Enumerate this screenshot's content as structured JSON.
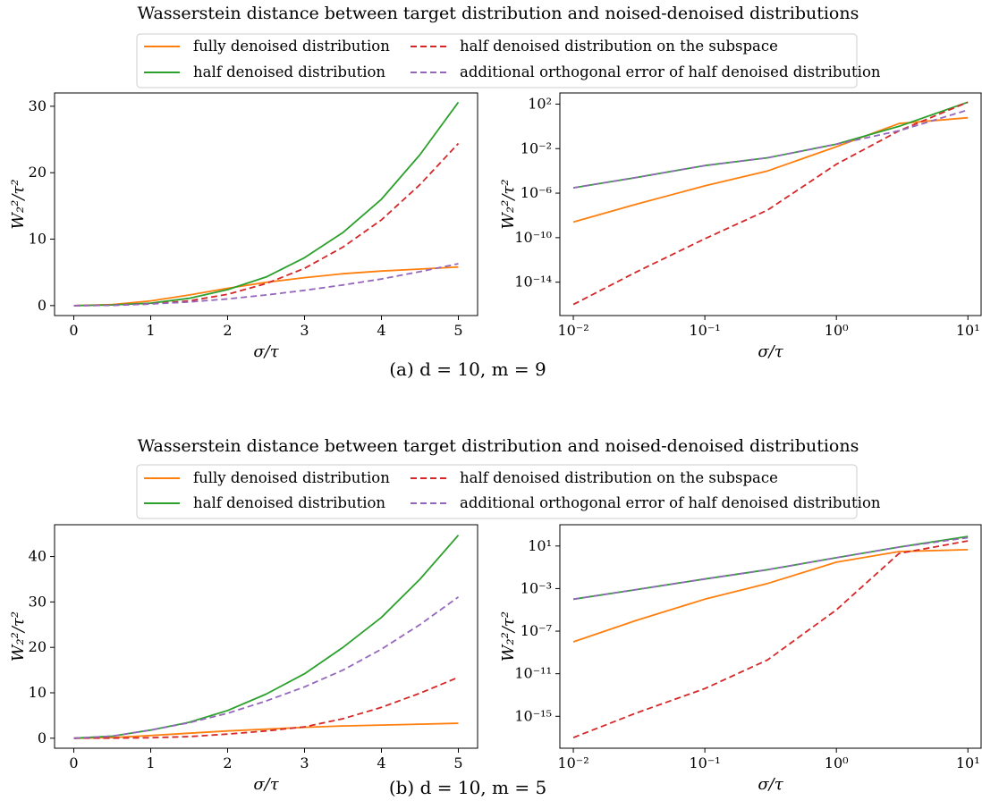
{
  "figures": [
    {
      "title": "Wasserstein distance between target distribution and noised-denoised distributions",
      "caption": "(a) d = 10, m = 9",
      "legend": [
        {
          "label": "fully denoised distribution",
          "color": "#ff7f0e",
          "dash": "solid"
        },
        {
          "label": "half denoised distribution on the subspace",
          "color": "#d62728",
          "dash": "dashed"
        },
        {
          "label": "half denoised distribution",
          "color": "#2ca02c",
          "dash": "solid"
        },
        {
          "label": "additional orthogonal error of half denoised distribution",
          "color": "#9467bd",
          "dash": "dashed"
        }
      ]
    },
    {
      "title": "Wasserstein distance between target distribution and noised-denoised distributions",
      "caption": "(b) d = 10, m = 5",
      "legend": [
        {
          "label": "fully denoised distribution",
          "color": "#ff7f0e",
          "dash": "solid"
        },
        {
          "label": "half denoised distribution on the subspace",
          "color": "#d62728",
          "dash": "dashed"
        },
        {
          "label": "half denoised distribution",
          "color": "#2ca02c",
          "dash": "solid"
        },
        {
          "label": "additional orthogonal error of half denoised distribution",
          "color": "#9467bd",
          "dash": "dashed"
        }
      ]
    }
  ],
  "chart_data": [
    {
      "type": "line",
      "figure": "a",
      "scale": "linear",
      "xlabel": "σ/τ",
      "ylabel": "W₂²/τ²",
      "xlim": [
        -0.25,
        5.25
      ],
      "ylim": [
        -1.5,
        32
      ],
      "xticks": [
        0,
        1,
        2,
        3,
        4,
        5
      ],
      "yticks": [
        0,
        10,
        20,
        30
      ],
      "x": [
        0,
        0.5,
        1,
        1.5,
        2,
        2.5,
        3,
        3.5,
        4,
        4.5,
        5
      ],
      "series": [
        {
          "name": "fully denoised distribution",
          "color": "#ff7f0e",
          "dash": "solid",
          "y": [
            0,
            0.15,
            0.7,
            1.6,
            2.6,
            3.5,
            4.2,
            4.8,
            5.2,
            5.5,
            5.8
          ]
        },
        {
          "name": "half denoised distribution",
          "color": "#2ca02c",
          "dash": "solid",
          "y": [
            0,
            0.1,
            0.35,
            1.1,
            2.4,
            4.3,
            7.2,
            11.0,
            16.0,
            22.7,
            30.6
          ]
        },
        {
          "name": "half denoised distribution on the subspace",
          "color": "#d62728",
          "dash": "dashed",
          "y": [
            0,
            0.05,
            0.25,
            0.7,
            1.7,
            3.3,
            5.6,
            8.8,
            12.9,
            18.2,
            24.4
          ]
        },
        {
          "name": "additional orthogonal error of half denoised distribution",
          "color": "#9467bd",
          "dash": "dashed",
          "y": [
            0,
            0.05,
            0.25,
            0.55,
            1.0,
            1.6,
            2.3,
            3.1,
            4.0,
            5.1,
            6.3
          ]
        }
      ]
    },
    {
      "type": "line",
      "figure": "a",
      "scale": "log",
      "xlabel": "σ/τ",
      "ylabel": "W₂²/τ²",
      "xlim": [
        0.0079,
        12.6
      ],
      "ylim": [
        1e-17,
        1000.0
      ],
      "xticks": [
        0.01,
        0.1,
        1,
        10
      ],
      "yticks": [
        1e-14,
        1e-10,
        1e-06,
        0.01,
        100.0
      ],
      "x": [
        0.01,
        0.03,
        0.1,
        0.3,
        1,
        3,
        10
      ],
      "series": [
        {
          "name": "fully denoised distribution",
          "color": "#ff7f0e",
          "dash": "solid",
          "y": [
            2.5e-09,
            1e-07,
            4.5e-06,
            0.0001,
            0.015,
            1.8,
            6
          ]
        },
        {
          "name": "half denoised distribution",
          "color": "#2ca02c",
          "dash": "solid",
          "y": [
            3e-06,
            2.5e-05,
            0.0003,
            0.0015,
            0.025,
            1.0,
            150.0
          ]
        },
        {
          "name": "half denoised distribution on the subspace",
          "color": "#d62728",
          "dash": "dashed",
          "y": [
            1e-16,
            8e-14,
            8e-11,
            3e-08,
            0.0004,
            0.4,
            150.0
          ]
        },
        {
          "name": "additional orthogonal error of half denoised distribution",
          "color": "#9467bd",
          "dash": "dashed",
          "y": [
            3e-06,
            2.5e-05,
            0.0003,
            0.0015,
            0.025,
            0.4,
            30.0
          ]
        }
      ]
    },
    {
      "type": "line",
      "figure": "b",
      "scale": "linear",
      "xlabel": "σ/τ",
      "ylabel": "W₂²/τ²",
      "xlim": [
        -0.25,
        5.25
      ],
      "ylim": [
        -2.2,
        47
      ],
      "xticks": [
        0,
        1,
        2,
        3,
        4,
        5
      ],
      "yticks": [
        0,
        10,
        20,
        30,
        40
      ],
      "x": [
        0,
        0.5,
        1,
        1.5,
        2,
        2.5,
        3,
        3.5,
        4,
        4.5,
        5
      ],
      "series": [
        {
          "name": "fully denoised distribution",
          "color": "#ff7f0e",
          "dash": "solid",
          "y": [
            0,
            0.15,
            0.6,
            1.1,
            1.6,
            2.0,
            2.4,
            2.7,
            2.9,
            3.1,
            3.3
          ]
        },
        {
          "name": "half denoised distribution",
          "color": "#2ca02c",
          "dash": "solid",
          "y": [
            0,
            0.45,
            1.8,
            3.5,
            6.1,
            9.7,
            14.2,
            20.0,
            26.6,
            35.0,
            44.7
          ]
        },
        {
          "name": "half denoised distribution on the subspace",
          "color": "#d62728",
          "dash": "dashed",
          "y": [
            0,
            0.02,
            0.1,
            0.35,
            0.9,
            1.6,
            2.5,
            4.3,
            6.8,
            9.9,
            13.4
          ]
        },
        {
          "name": "additional orthogonal error of half denoised distribution",
          "color": "#9467bd",
          "dash": "dashed",
          "y": [
            0,
            0.45,
            1.8,
            3.4,
            5.5,
            8.2,
            11.3,
            15.0,
            19.6,
            25.0,
            31.1
          ]
        }
      ]
    },
    {
      "type": "line",
      "figure": "b",
      "scale": "log",
      "xlabel": "σ/τ",
      "ylabel": "W₂²/τ²",
      "xlim": [
        0.0079,
        12.6
      ],
      "ylim": [
        1e-18,
        1000.0
      ],
      "xticks": [
        0.01,
        0.1,
        1,
        10
      ],
      "yticks": [
        1e-15,
        1e-11,
        1e-07,
        0.001,
        10.0
      ],
      "x": [
        0.01,
        0.03,
        0.1,
        0.3,
        1,
        3,
        10
      ],
      "series": [
        {
          "name": "fully denoised distribution",
          "color": "#ff7f0e",
          "dash": "solid",
          "y": [
            1e-08,
            1e-06,
            0.0001,
            0.003,
            0.3,
            3,
            4.5
          ]
        },
        {
          "name": "half denoised distribution",
          "color": "#2ca02c",
          "dash": "solid",
          "y": [
            0.0001,
            0.0008,
            0.008,
            0.06,
            0.8,
            8,
            80
          ]
        },
        {
          "name": "half denoised distribution on the subspace",
          "color": "#d62728",
          "dash": "dashed",
          "y": [
            1e-17,
            2e-15,
            4e-13,
            2e-10,
            1e-05,
            2,
            30
          ]
        },
        {
          "name": "additional orthogonal error of half denoised distribution",
          "color": "#9467bd",
          "dash": "dashed",
          "y": [
            0.0001,
            0.0008,
            0.008,
            0.06,
            0.8,
            8,
            60
          ]
        }
      ]
    }
  ]
}
